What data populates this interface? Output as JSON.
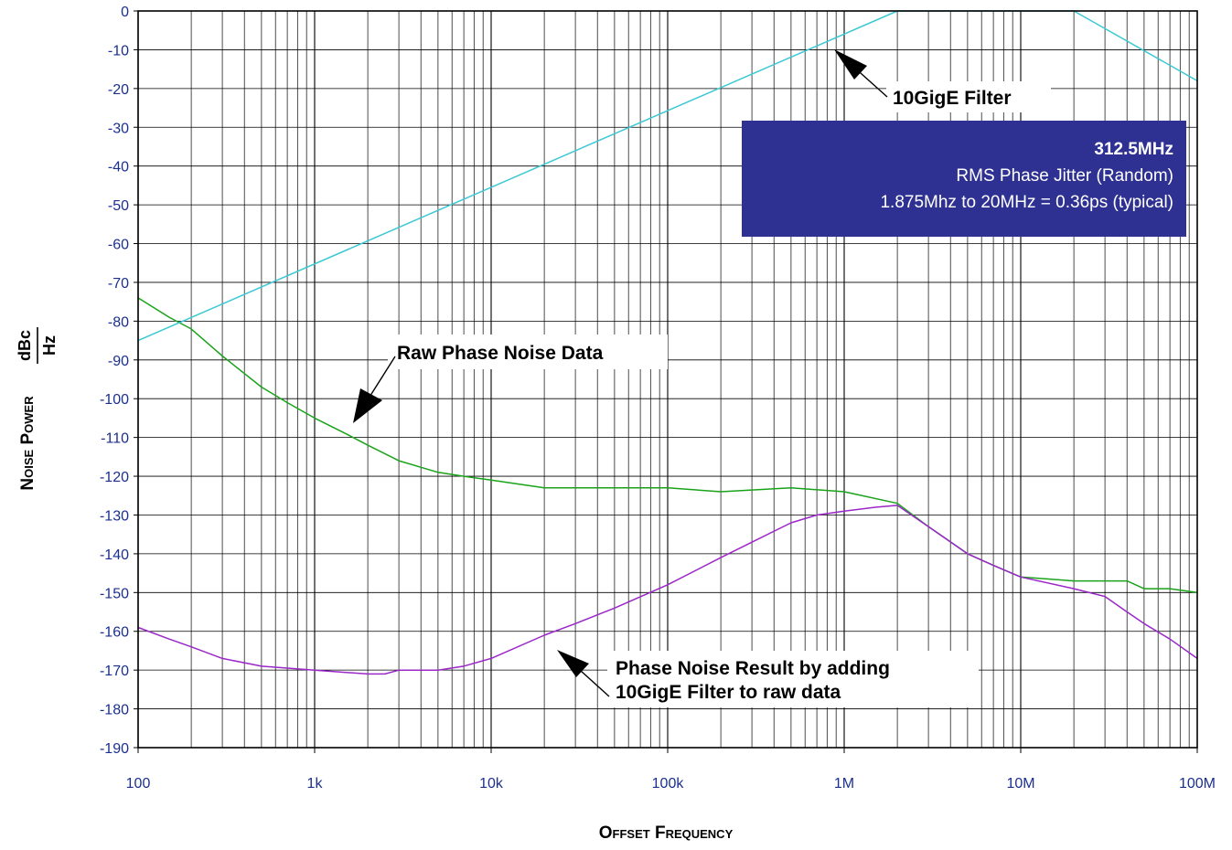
{
  "chart_data": {
    "type": "line",
    "x_scale": "log",
    "xlim": [
      100,
      100000000
    ],
    "ylim": [
      -190,
      0
    ],
    "grid": true,
    "xlabel": {
      "main": "Offset Frequency"
    },
    "ylabel": {
      "main": "Noise Power",
      "unit_numerator": "dBc",
      "unit_denominator": "Hz"
    },
    "x_tick_labels": [
      "100",
      "1k",
      "10k",
      "100k",
      "1M",
      "10M",
      "100M"
    ],
    "x_ticks": [
      100,
      1000,
      10000,
      100000,
      1000000,
      10000000,
      100000000
    ],
    "y_ticks": [
      0,
      -10,
      -20,
      -30,
      -40,
      -50,
      -60,
      -70,
      -80,
      -90,
      -100,
      -110,
      -120,
      -130,
      -140,
      -150,
      -160,
      -170,
      -180,
      -190
    ],
    "series": [
      {
        "name": "Raw Phase Noise Data",
        "color": "#1aa31a",
        "x": [
          100,
          150,
          200,
          300,
          500,
          700,
          1000,
          1500,
          2000,
          3000,
          5000,
          7000,
          10000,
          20000,
          50000,
          100000,
          200000,
          500000,
          1000000,
          2000000,
          3000000,
          5000000,
          7000000,
          10000000,
          20000000,
          40000000,
          50000000,
          70000000,
          100000000
        ],
        "y": [
          -74,
          -79,
          -82,
          -89,
          -97,
          -101,
          -105,
          -109,
          -112,
          -116,
          -119,
          -120,
          -121,
          -123,
          -123,
          -123,
          -124,
          -123,
          -124,
          -127,
          -133,
          -140,
          -143,
          -146,
          -147,
          -147,
          -149,
          -149,
          -150
        ]
      },
      {
        "name": "Phase Noise Result by adding 10GigE Filter to raw data",
        "color": "#9b27c8",
        "x": [
          100,
          150,
          200,
          300,
          500,
          1000,
          2000,
          2500,
          3000,
          5000,
          7000,
          10000,
          20000,
          30000,
          50000,
          100000,
          200000,
          300000,
          500000,
          700000,
          1000000,
          1500000,
          2000000,
          3000000,
          5000000,
          7000000,
          10000000,
          20000000,
          30000000,
          40000000,
          50000000,
          70000000,
          100000000
        ],
        "y": [
          -159,
          -162,
          -164,
          -167,
          -169,
          -170,
          -171,
          -171,
          -170,
          -170,
          -169,
          -167,
          -161,
          -158,
          -154,
          -148,
          -141,
          -137,
          -132,
          -130,
          -129,
          -128,
          -127.5,
          -133,
          -140,
          -143,
          -146,
          -149,
          -151,
          -155,
          -158,
          -162,
          -167
        ]
      },
      {
        "name": "10GigE Filter",
        "color": "#3cc8d4",
        "x": [
          100,
          2000000,
          20000000,
          100000000
        ],
        "y": [
          -85,
          0,
          0,
          -18
        ]
      }
    ],
    "annotations": [
      {
        "text": "10GigE Filter",
        "arrow_to": [
          600000,
          -4
        ]
      },
      {
        "text": "Raw Phase Noise Data",
        "arrow_to": [
          1500,
          -108
        ]
      },
      {
        "lines": [
          "Phase Noise Result by adding",
          "10GigE Filter to raw data"
        ],
        "arrow_to": [
          22000,
          -160
        ]
      }
    ],
    "info_box": {
      "line1": "312.5MHz",
      "line2": "RMS Phase Jitter  (Random)",
      "line3": "1.875Mhz to 20MHz = 0.36ps (typical)",
      "background": "#2e3192",
      "placement": "top-right"
    }
  }
}
